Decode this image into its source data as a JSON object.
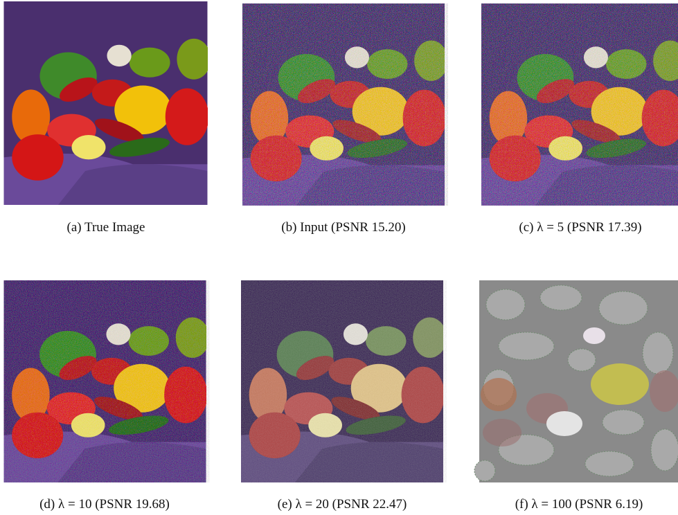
{
  "panels": [
    {
      "caption": "(a) True Image"
    },
    {
      "caption": "(b) Input (PSNR 15.20)"
    },
    {
      "caption": "(c) λ = 5 (PSNR 17.39)"
    },
    {
      "caption": "(d) λ = 10 (PSNR 19.68)"
    },
    {
      "caption": "(e) λ = 20 (PSNR 22.47)"
    },
    {
      "caption": "(f) λ = 100 (PSNR 6.19)"
    }
  ]
}
